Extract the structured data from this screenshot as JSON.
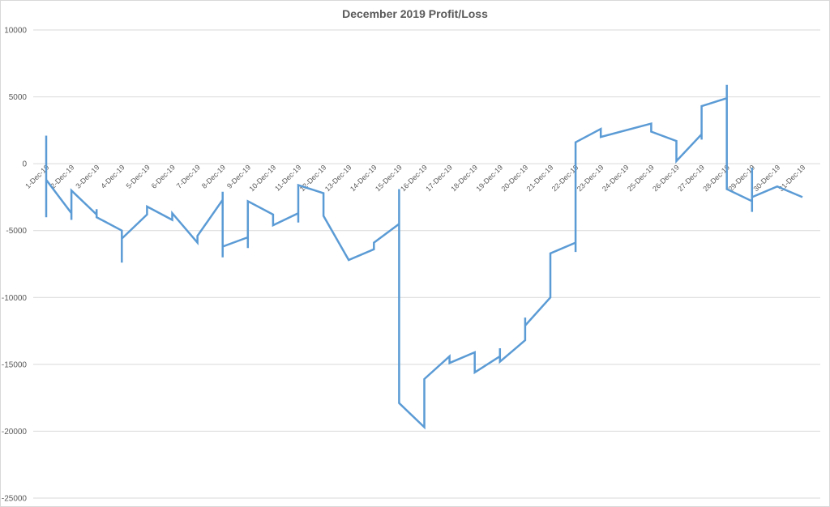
{
  "chart_data": {
    "type": "line",
    "title": "December 2019 Profit/Loss",
    "xlabel": "",
    "ylabel": "",
    "ylim": [
      -25000,
      10000
    ],
    "y_ticks": [
      10000,
      5000,
      0,
      -5000,
      -10000,
      -15000,
      -20000,
      -25000
    ],
    "y_tick_labels": [
      "10000",
      "5000",
      "0",
      "-5000",
      "-10000",
      "-15000",
      "-20000",
      "-25000"
    ],
    "categories": [
      "1-Dec-19",
      "2-Dec-19",
      "3-Dec-19",
      "4-Dec-19",
      "5-Dec-19",
      "6-Dec-19",
      "7-Dec-19",
      "8-Dec-19",
      "9-Dec-19",
      "10-Dec-19",
      "11-Dec-19",
      "12-Dec-19",
      "13-Dec-19",
      "14-Dec-19",
      "15-Dec-19",
      "16-Dec-19",
      "17-Dec-19",
      "18-Dec-19",
      "19-Dec-19",
      "20-Dec-19",
      "21-Dec-19",
      "22-Dec-19",
      "23-Dec-19",
      "24-Dec-19",
      "25-Dec-19",
      "26-Dec-19",
      "27-Dec-19",
      "28-Dec-19",
      "29-Dec-19",
      "30-Dec-19",
      "31-Dec-19"
    ],
    "grid": true,
    "legend": "none",
    "series_color": "#5b9bd5",
    "series": [
      {
        "values": [
          [
            0,
            -1000
          ],
          [
            0,
            2100
          ],
          [
            0,
            -4000
          ],
          [
            0,
            -1200
          ],
          [
            1,
            -3700
          ],
          [
            1,
            -4200
          ],
          [
            1,
            -2000
          ],
          [
            2,
            -3800
          ],
          [
            2,
            -3400
          ],
          [
            2,
            -4000
          ],
          [
            3,
            -5000
          ],
          [
            3,
            -7400
          ],
          [
            3,
            -5600
          ],
          [
            4,
            -3800
          ],
          [
            4,
            -3200
          ],
          [
            5,
            -4200
          ],
          [
            5,
            -3700
          ],
          [
            6,
            -5900
          ],
          [
            6,
            -5400
          ],
          [
            7,
            -2700
          ],
          [
            7,
            -2100
          ],
          [
            7,
            -7000
          ],
          [
            7,
            -6200
          ],
          [
            8,
            -5500
          ],
          [
            8,
            -6300
          ],
          [
            8,
            -2800
          ],
          [
            9,
            -3800
          ],
          [
            9,
            -4600
          ],
          [
            10,
            -3700
          ],
          [
            10,
            -4400
          ],
          [
            10,
            -1600
          ],
          [
            11,
            -2200
          ],
          [
            11,
            -3900
          ],
          [
            12,
            -7200
          ],
          [
            13,
            -6400
          ],
          [
            13,
            -5900
          ],
          [
            14,
            -4500
          ],
          [
            14,
            -1900
          ],
          [
            14,
            -17900
          ],
          [
            15,
            -19700
          ],
          [
            15,
            -16100
          ],
          [
            16,
            -14400
          ],
          [
            16,
            -14900
          ],
          [
            17,
            -14100
          ],
          [
            17,
            -15600
          ],
          [
            18,
            -14400
          ],
          [
            18,
            -13800
          ],
          [
            18,
            -14800
          ],
          [
            19,
            -13200
          ],
          [
            19,
            -11500
          ],
          [
            19,
            -12100
          ],
          [
            20,
            -10000
          ],
          [
            20,
            -6700
          ],
          [
            21,
            -5900
          ],
          [
            21,
            -6600
          ],
          [
            21,
            1600
          ],
          [
            22,
            2600
          ],
          [
            22,
            2000
          ],
          [
            24,
            3000
          ],
          [
            24,
            2400
          ],
          [
            25,
            1700
          ],
          [
            25,
            200
          ],
          [
            26,
            2200
          ],
          [
            26,
            1800
          ],
          [
            26,
            4300
          ],
          [
            27,
            4900
          ],
          [
            27,
            5900
          ],
          [
            27,
            -1900
          ],
          [
            28,
            -2800
          ],
          [
            28,
            -3600
          ],
          [
            28,
            -300
          ],
          [
            28,
            -2500
          ],
          [
            29,
            -1700
          ],
          [
            30,
            -2500
          ]
        ]
      }
    ]
  }
}
